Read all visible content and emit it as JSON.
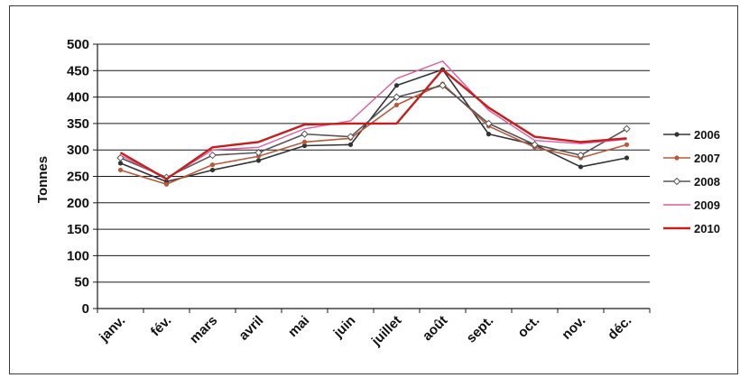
{
  "chart_data": {
    "type": "line",
    "title": "",
    "xlabel": "",
    "ylabel": "Tonnes",
    "ylim": [
      0,
      500
    ],
    "yticks": [
      0,
      50,
      100,
      150,
      200,
      250,
      300,
      350,
      400,
      450,
      500
    ],
    "grid": true,
    "legend_position": "right",
    "categories": [
      "janv.",
      "fév.",
      "mars",
      "avril",
      "mai",
      "juin",
      "juillet",
      "août",
      "sept.",
      "oct.",
      "nov.",
      "déc."
    ],
    "series": [
      {
        "name": "2006",
        "color": "#333333",
        "marker": "dot",
        "values": [
          275,
          240,
          262,
          280,
          308,
          310,
          422,
          452,
          330,
          310,
          268,
          285
        ]
      },
      {
        "name": "2007",
        "color": "#b85a3a",
        "marker": "dot",
        "values": [
          262,
          235,
          272,
          288,
          315,
          322,
          385,
          425,
          345,
          305,
          285,
          310
        ]
      },
      {
        "name": "2008",
        "color": "#555555",
        "marker": "diamond",
        "values": [
          285,
          248,
          290,
          295,
          330,
          325,
          400,
          422,
          350,
          310,
          290,
          340
        ]
      },
      {
        "name": "2009",
        "color": "#e35a9a",
        "marker": "none",
        "values": [
          290,
          245,
          300,
          305,
          340,
          355,
          435,
          468,
          375,
          318,
          312,
          320
        ]
      },
      {
        "name": "2010",
        "color": "#c41e1e",
        "marker": "none",
        "values": [
          295,
          245,
          305,
          315,
          348,
          350,
          350,
          452,
          380,
          325,
          315,
          322
        ]
      }
    ]
  }
}
